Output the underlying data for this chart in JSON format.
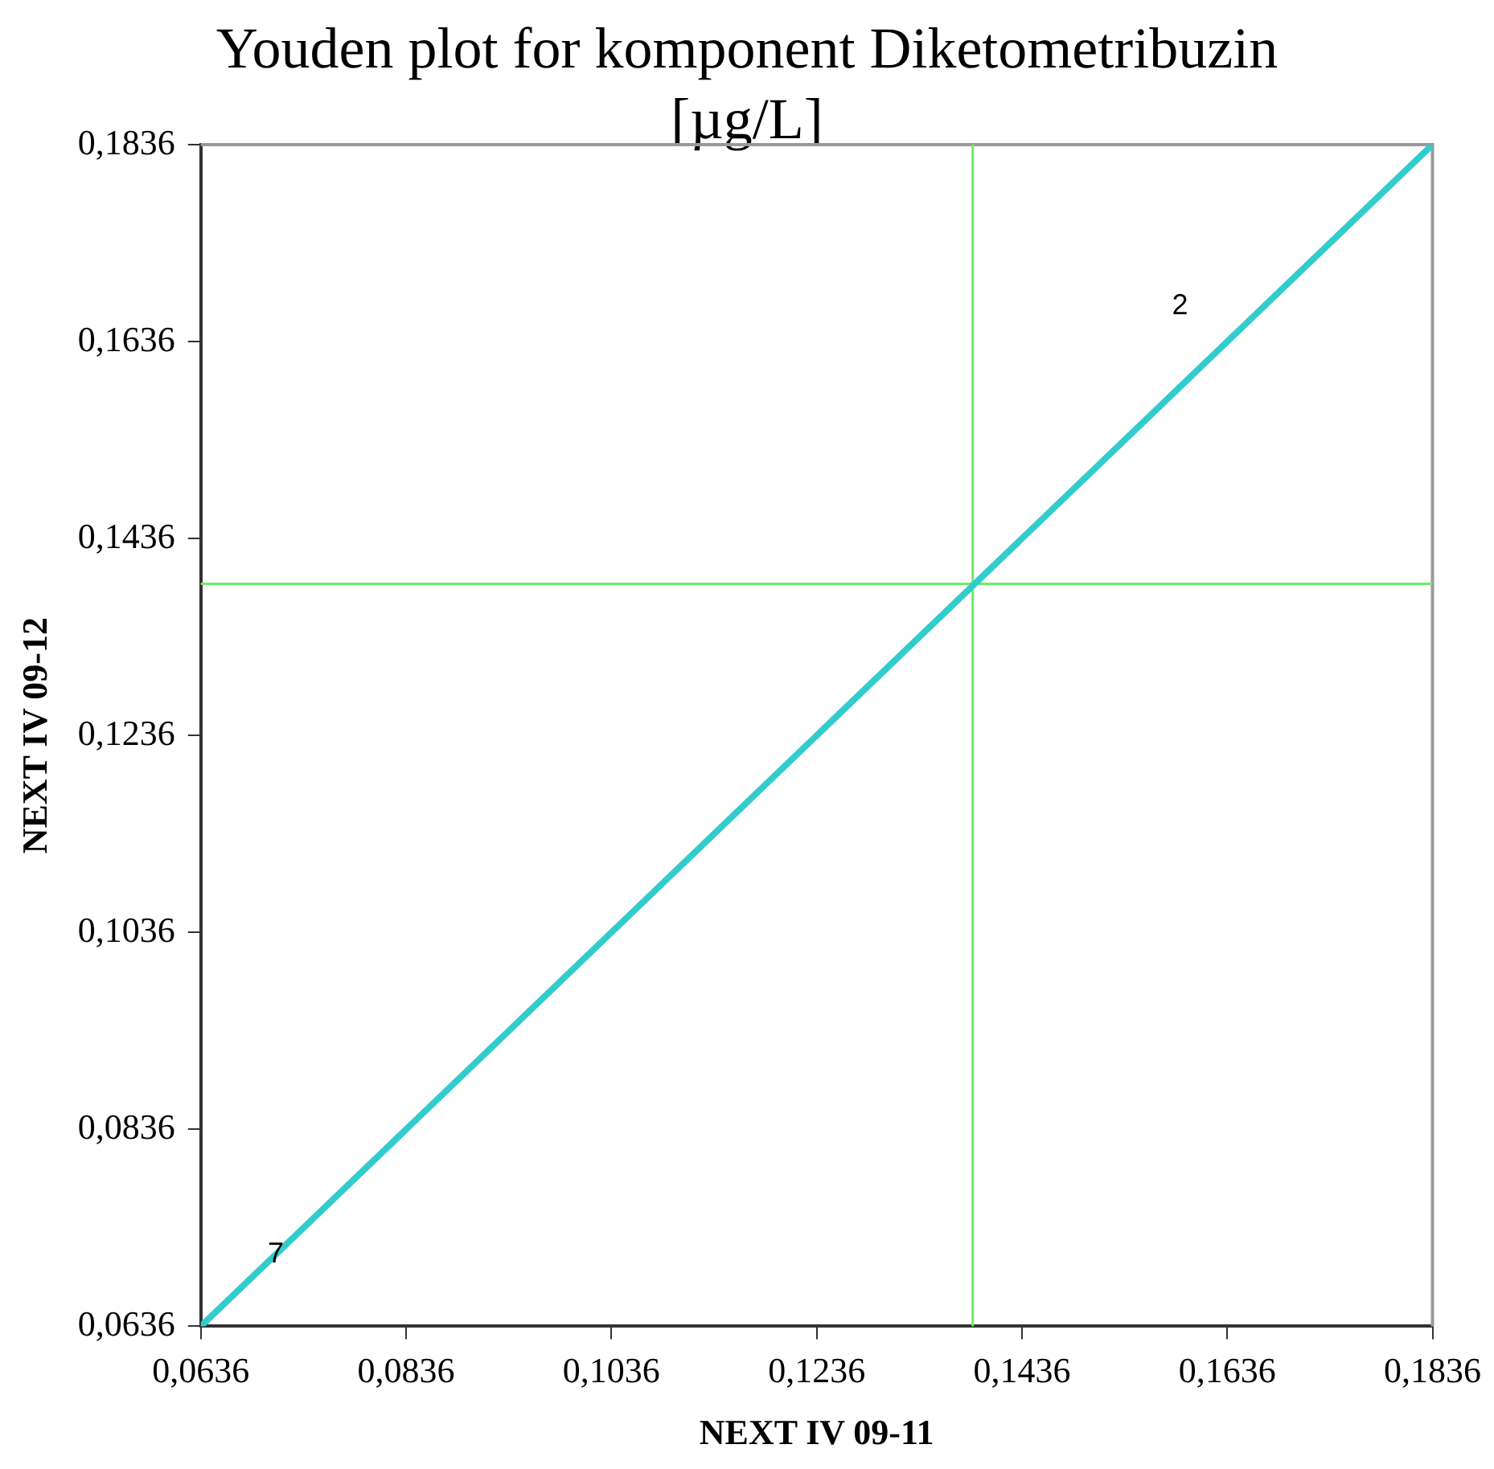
{
  "chart_data": {
    "type": "line",
    "title": "Youden plot for komponent Diketometribuzin [µg/L]",
    "xlabel": "NEXT IV 09-11",
    "ylabel": "NEXT IV 09-12",
    "series": [
      {
        "color": "#33cccc",
        "x": [
          0.0636,
          0.1836
        ],
        "values": [
          0.0636,
          0.1836
        ]
      }
    ],
    "xlim": [
      0.0636,
      0.1836
    ],
    "ylim": [
      0.0636,
      0.1836
    ],
    "xticks": [
      {
        "value": 0.0636,
        "label": "0,0636"
      },
      {
        "value": 0.0836,
        "label": "0,0836"
      },
      {
        "value": 0.1036,
        "label": "0,1036"
      },
      {
        "value": 0.1236,
        "label": "0,1236"
      },
      {
        "value": 0.1436,
        "label": "0,1436"
      },
      {
        "value": 0.1636,
        "label": "0,1636"
      },
      {
        "value": 0.1836,
        "label": "0,1836"
      }
    ],
    "yticks": [
      {
        "value": 0.0636,
        "label": "0,0636"
      },
      {
        "value": 0.0836,
        "label": "0,0836"
      },
      {
        "value": 0.1036,
        "label": "0,1036"
      },
      {
        "value": 0.1236,
        "label": "0,1236"
      },
      {
        "value": 0.1436,
        "label": "0,1436"
      },
      {
        "value": 0.1636,
        "label": "0,1636"
      },
      {
        "value": 0.1836,
        "label": "0,1836"
      }
    ],
    "ref_lines": [
      {
        "axis": "x",
        "value": 0.1388,
        "color": "#66ee66"
      },
      {
        "axis": "y",
        "value": 0.139,
        "color": "#66ee66"
      }
    ],
    "annotations": [
      "2",
      {
        "text": "7",
        "x": 0.0709,
        "y": 0.0709
      }
    ],
    "grid": false,
    "legend": false,
    "marker": "none",
    "line_style": "solid"
  }
}
